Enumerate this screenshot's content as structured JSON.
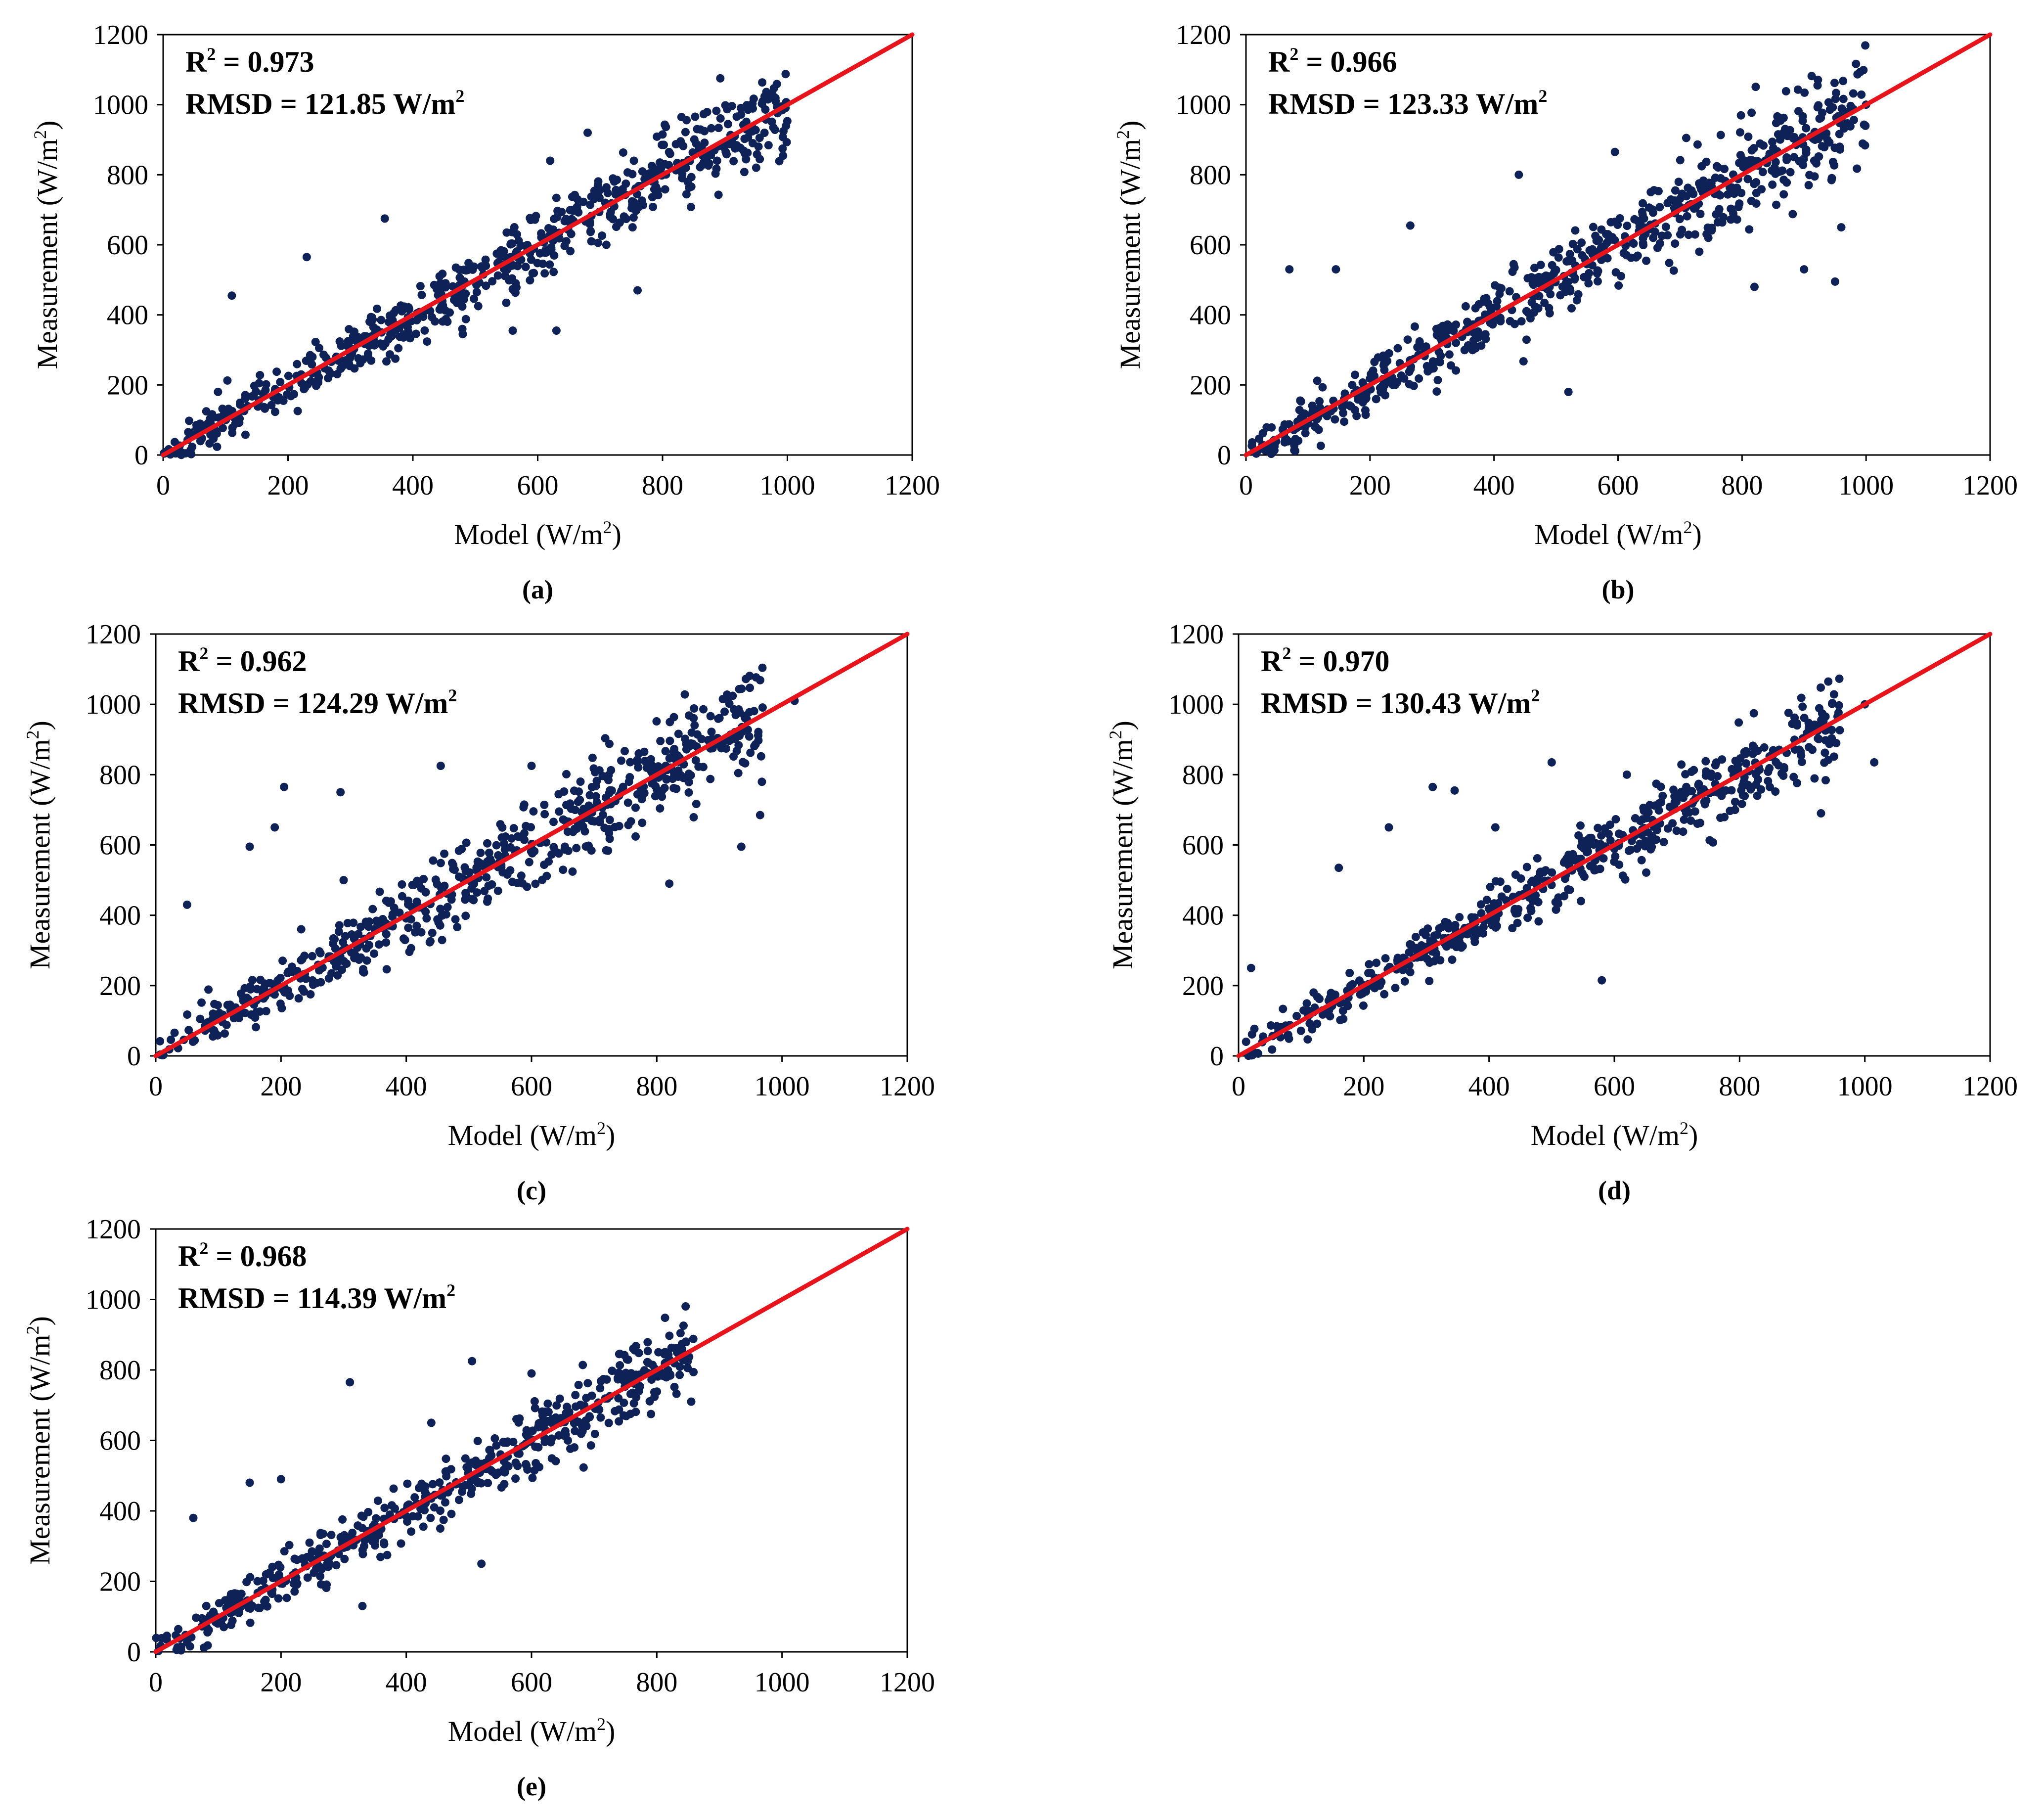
{
  "figure": {
    "marker_color": "#0f2257",
    "fit_color": "#e8141b"
  },
  "chart_data": [
    {
      "type": "scatter",
      "panel": "(a)",
      "stats": {
        "r2_prefix": "R",
        "r2_exp": "2",
        "r2_value": " = 0.973",
        "rmsd_text": "RMSD = 121.85 W/m",
        "rmsd_exp": "2"
      },
      "xlabel": "Model (W/m",
      "xlabel_exp": "2",
      "xlabel_end": ")",
      "ylabel": "Measurement (W/m",
      "ylabel_exp": "2",
      "ylabel_end": ")",
      "xlim": [
        0,
        1200
      ],
      "ylim": [
        0,
        1200
      ],
      "ticks": [
        0,
        200,
        400,
        600,
        800,
        1000,
        1200
      ],
      "tick_labels": [
        "0",
        "200",
        "400",
        "600",
        "800",
        "1000",
        "1200"
      ],
      "fit_line": [
        [
          0,
          0
        ],
        [
          1200,
          1200
        ]
      ],
      "sample": {
        "n": 650,
        "max_x": 1000,
        "noise": 48,
        "seed": 11
      },
      "points": [
        [
          680,
          920
        ],
        [
          760,
          470
        ],
        [
          630,
          355
        ],
        [
          560,
          355
        ],
        [
          230,
          565
        ],
        [
          355,
          675
        ],
        [
          110,
          455
        ],
        [
          950,
          820
        ],
        [
          800,
          915
        ],
        [
          710,
          600
        ],
        [
          480,
          345
        ],
        [
          620,
          840
        ]
      ]
    },
    {
      "type": "scatter",
      "panel": "(b)",
      "stats": {
        "r2_prefix": "R",
        "r2_exp": "2",
        "r2_value": " = 0.966",
        "rmsd_text": "RMSD = 123.33 W/m",
        "rmsd_exp": "2"
      },
      "xlabel": "Model (W/m",
      "xlabel_exp": "2",
      "xlabel_end": ")",
      "ylabel": "Measurement (W/m",
      "ylabel_exp": "2",
      "ylabel_end": ")",
      "xlim": [
        0,
        1200
      ],
      "ylim": [
        0,
        1200
      ],
      "ticks": [
        0,
        200,
        400,
        600,
        800,
        1000,
        1200
      ],
      "tick_labels": [
        "0",
        "200",
        "400",
        "600",
        "800",
        "1000",
        "1200"
      ],
      "fit_line": [
        [
          0,
          0
        ],
        [
          1200,
          1200
        ]
      ],
      "sample": {
        "n": 650,
        "max_x": 1000,
        "noise": 52,
        "seed": 23
      },
      "points": [
        [
          950,
          495
        ],
        [
          520,
          180
        ],
        [
          595,
          865
        ],
        [
          710,
          905
        ],
        [
          900,
          530
        ],
        [
          265,
          655
        ],
        [
          70,
          530
        ],
        [
          145,
          530
        ],
        [
          440,
          800
        ],
        [
          960,
          650
        ],
        [
          1000,
          1000
        ],
        [
          820,
          480
        ]
      ]
    },
    {
      "type": "scatter",
      "panel": "(c)",
      "stats": {
        "r2_prefix": "R",
        "r2_exp": "2",
        "r2_value": " = 0.962",
        "rmsd_text": "RMSD = 124.29 W/m",
        "rmsd_exp": "2"
      },
      "xlabel": "Model (W/m",
      "xlabel_exp": "2",
      "xlabel_end": ")",
      "ylabel": "Measurement (W/m",
      "ylabel_exp": "2",
      "ylabel_end": ")",
      "xlim": [
        0,
        1200
      ],
      "ylim": [
        0,
        1200
      ],
      "ticks": [
        0,
        200,
        400,
        600,
        800,
        1000,
        1200
      ],
      "tick_labels": [
        "0",
        "200",
        "400",
        "600",
        "800",
        "1000",
        "1200"
      ],
      "fit_line": [
        [
          0,
          0
        ],
        [
          1200,
          1200
        ]
      ],
      "sample": {
        "n": 600,
        "max_x": 970,
        "noise": 55,
        "seed": 37
      },
      "points": [
        [
          205,
          765
        ],
        [
          295,
          750
        ],
        [
          190,
          650
        ],
        [
          455,
          825
        ],
        [
          600,
          825
        ],
        [
          965,
          685
        ],
        [
          935,
          595
        ],
        [
          820,
          490
        ],
        [
          150,
          595
        ],
        [
          50,
          430
        ],
        [
          1020,
          1010
        ],
        [
          300,
          500
        ]
      ]
    },
    {
      "type": "scatter",
      "panel": "(d)",
      "stats": {
        "r2_prefix": "R",
        "r2_exp": "2",
        "r2_value": " = 0.970",
        "rmsd_text": "RMSD = 130.43 W/m",
        "rmsd_exp": "2"
      },
      "xlabel": "Model (W/m",
      "xlabel_exp": "2",
      "xlabel_end": ")",
      "ylabel": "Measurement (W/m",
      "ylabel_exp": "2",
      "ylabel_end": ")",
      "xlim": [
        0,
        1200
      ],
      "ylim": [
        0,
        1200
      ],
      "ticks": [
        0,
        200,
        400,
        600,
        800,
        1000,
        1200
      ],
      "tick_labels": [
        "0",
        "200",
        "400",
        "600",
        "800",
        "1000",
        "1200"
      ],
      "fit_line": [
        [
          0,
          0
        ],
        [
          1200,
          1200
        ]
      ],
      "sample": {
        "n": 560,
        "max_x": 960,
        "noise": 42,
        "seed": 53
      },
      "points": [
        [
          310,
          765
        ],
        [
          345,
          755
        ],
        [
          500,
          835
        ],
        [
          580,
          215
        ],
        [
          1015,
          835
        ],
        [
          240,
          650
        ],
        [
          160,
          535
        ],
        [
          930,
          690
        ],
        [
          20,
          250
        ],
        [
          410,
          650
        ],
        [
          620,
          800
        ],
        [
          1000,
          1000
        ]
      ]
    },
    {
      "type": "scatter",
      "panel": "(e)",
      "stats": {
        "r2_prefix": "R",
        "r2_exp": "2",
        "r2_value": " = 0.968",
        "rmsd_text": "RMSD = 114.39 W/m",
        "rmsd_exp": "2"
      },
      "xlabel": "Model (W/m",
      "xlabel_exp": "2",
      "xlabel_end": ")",
      "ylabel": "Measurement (W/m",
      "ylabel_exp": "2",
      "ylabel_end": ")",
      "xlim": [
        0,
        1200
      ],
      "ylim": [
        0,
        1200
      ],
      "ticks": [
        0,
        200,
        400,
        600,
        800,
        1000,
        1200
      ],
      "tick_labels": [
        "0",
        "200",
        "400",
        "600",
        "800",
        "1000",
        "1200"
      ],
      "fit_line": [
        [
          0,
          0
        ],
        [
          1200,
          1200
        ]
      ],
      "sample": {
        "n": 520,
        "max_x": 860,
        "noise": 40,
        "seed": 71
      },
      "points": [
        [
          310,
          765
        ],
        [
          505,
          825
        ],
        [
          200,
          490
        ],
        [
          150,
          480
        ],
        [
          740,
          845
        ],
        [
          855,
          710
        ],
        [
          330,
          130
        ],
        [
          520,
          250
        ],
        [
          60,
          380
        ],
        [
          440,
          650
        ],
        [
          600,
          790
        ],
        [
          820,
          830
        ]
      ]
    }
  ]
}
